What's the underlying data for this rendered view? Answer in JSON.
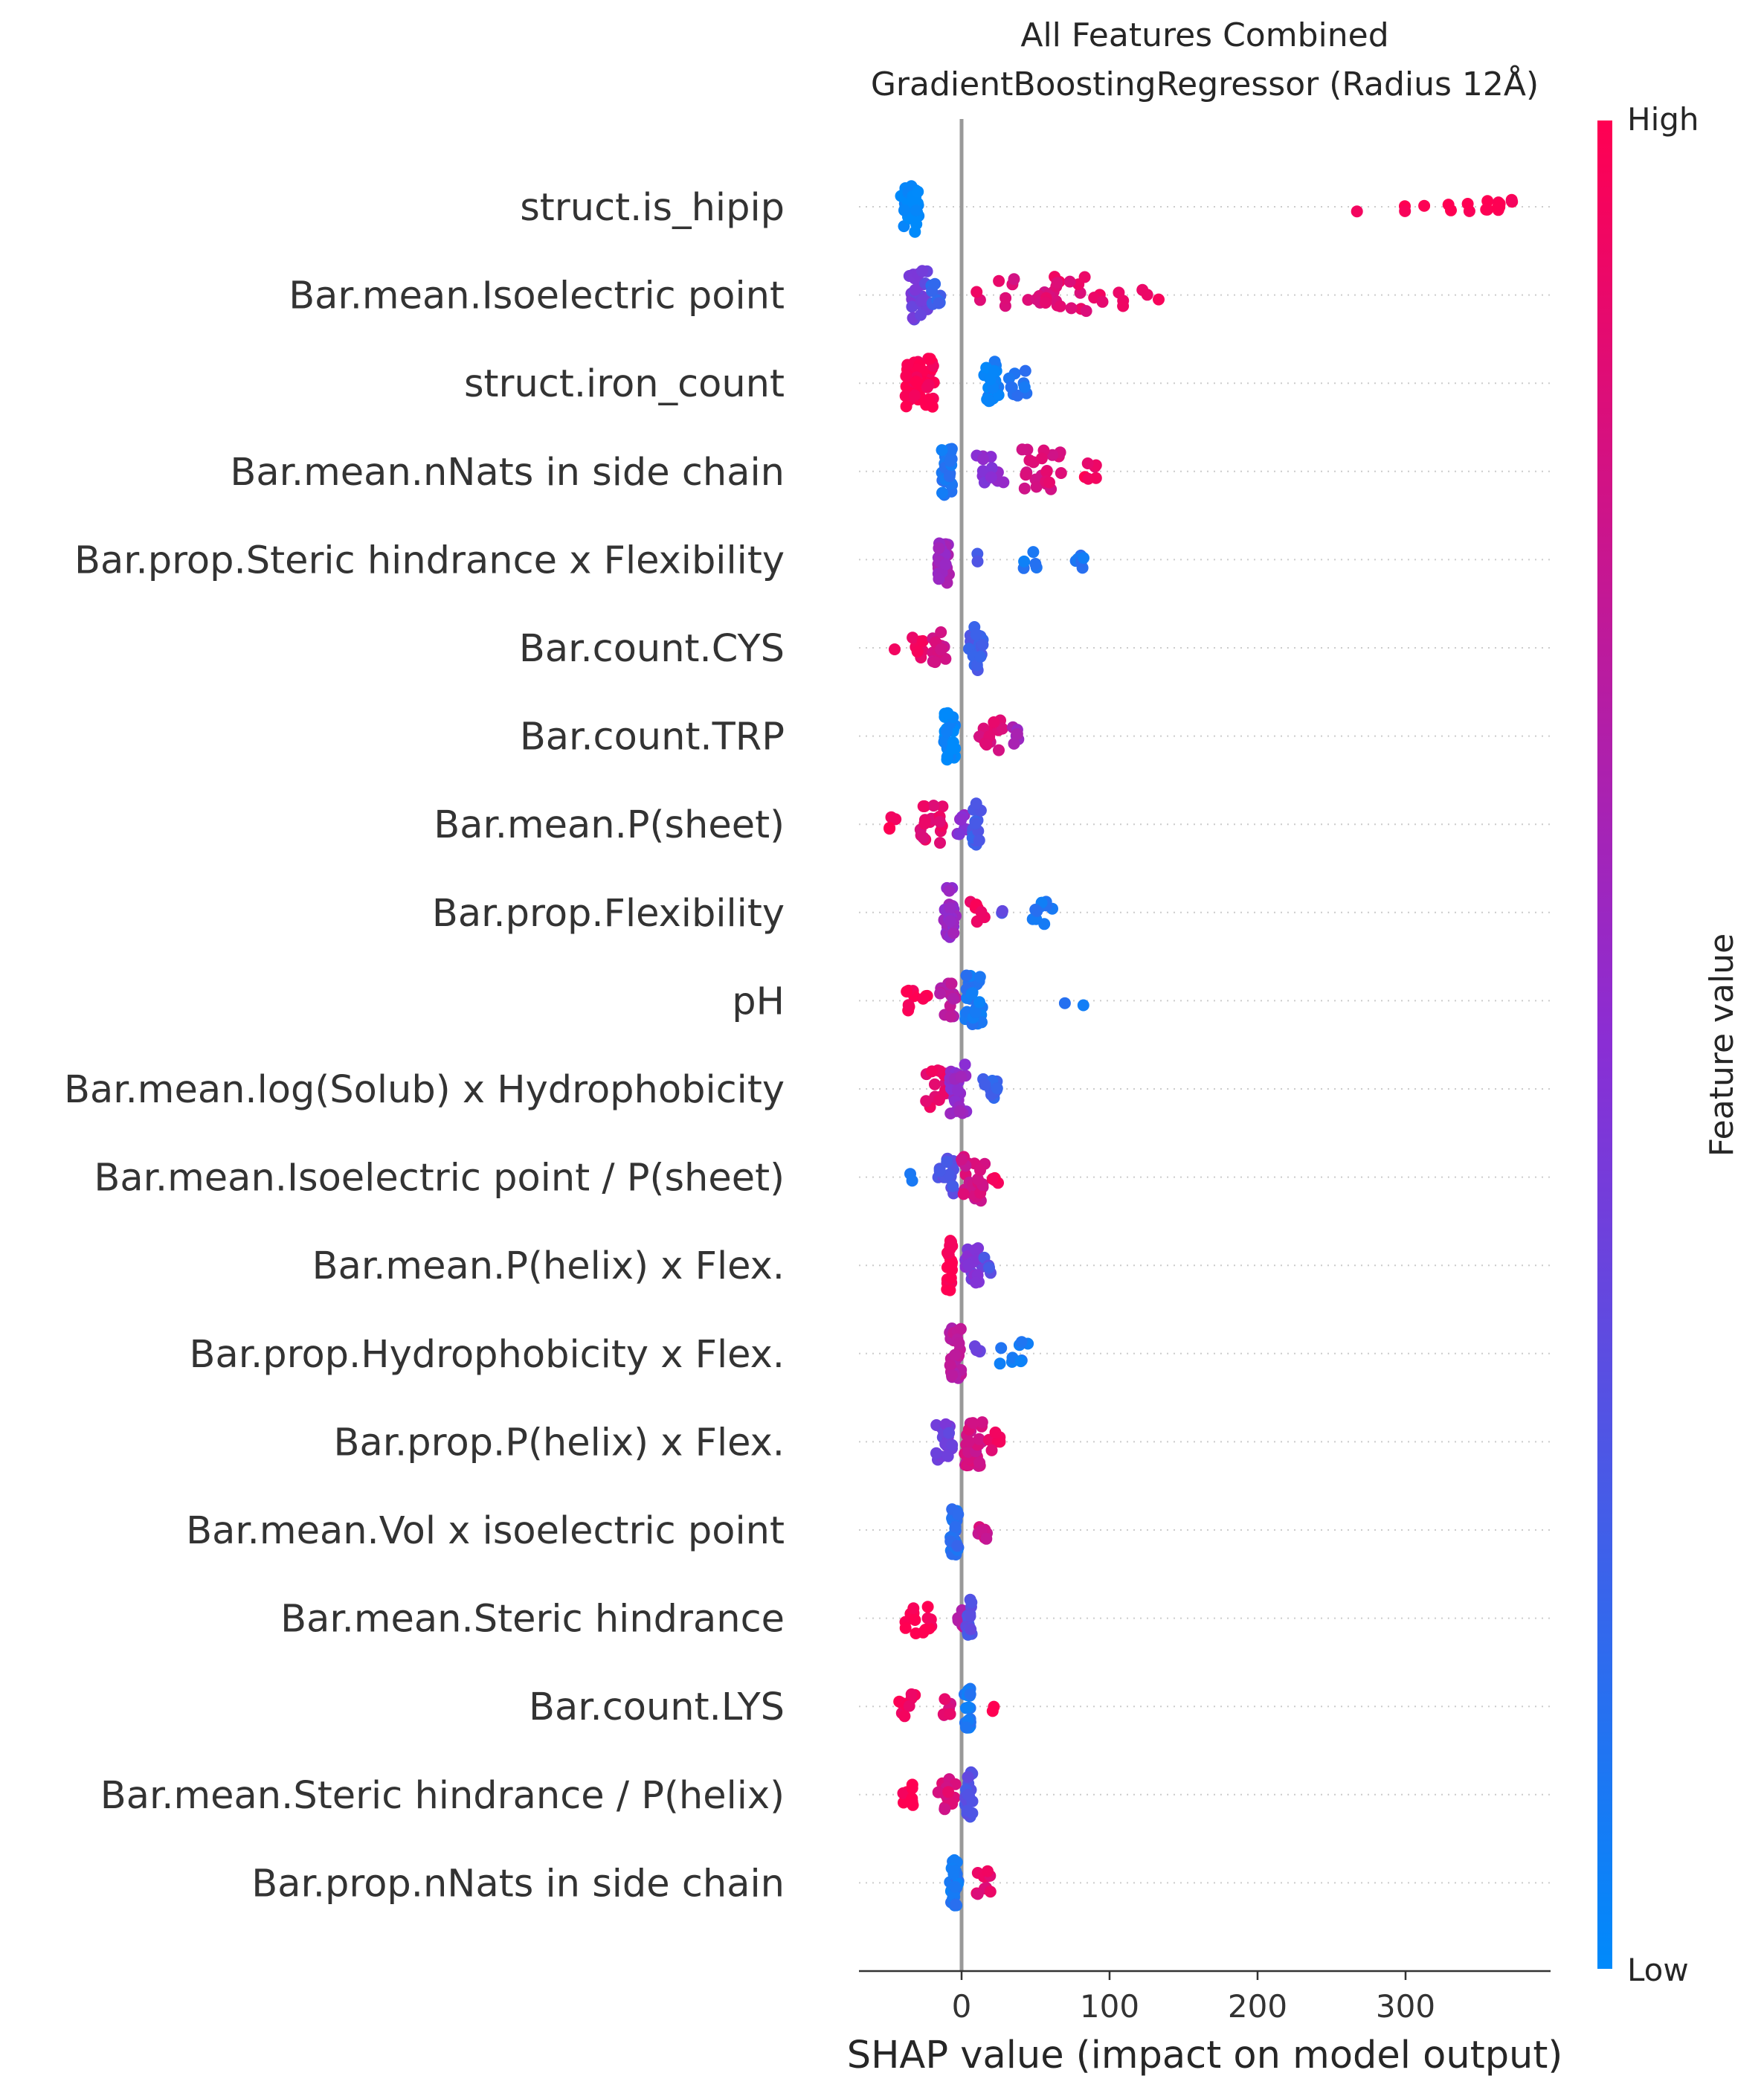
{
  "chart_data": {
    "type": "scatter",
    "subtype": "shap-beeswarm",
    "title": "All Features Combined",
    "subtitle": "GradientBoostingRegressor (Radius 12Å)",
    "xlabel": "SHAP value (impact on model output)",
    "xlim": [
      -70,
      400
    ],
    "xticks": [
      0,
      100,
      200,
      300
    ],
    "colorbar": {
      "label": "Feature value",
      "high_label": "High",
      "low_label": "Low",
      "low_color": "#008afb",
      "mid_color": "#8a2ed4",
      "high_color": "#ff0052"
    },
    "colors": {
      "zero_line": "#999999",
      "row_grid": "#cccccc",
      "axis": "#333333"
    },
    "features": [
      {
        "name": "struct.is_hipip",
        "points": [
          {
            "x": -35,
            "v": 0.0,
            "n": 34,
            "s": 6
          },
          {
            "x": 268,
            "v": 1.0,
            "n": 1,
            "s": 1
          },
          {
            "x": 300,
            "v": 1.0,
            "n": 2,
            "s": 1
          },
          {
            "x": 312,
            "v": 1.0,
            "n": 1,
            "s": 1
          },
          {
            "x": 330,
            "v": 1.0,
            "n": 2,
            "s": 1
          },
          {
            "x": 343,
            "v": 1.0,
            "n": 2,
            "s": 1
          },
          {
            "x": 355,
            "v": 1.0,
            "n": 4,
            "s": 1
          },
          {
            "x": 363,
            "v": 1.0,
            "n": 5,
            "s": 1
          },
          {
            "x": 372,
            "v": 1.0,
            "n": 3,
            "s": 1
          }
        ]
      },
      {
        "name": "Bar.mean.Isoelectric point",
        "points": [
          {
            "x": -30,
            "v": 0.4,
            "n": 26,
            "s": 7
          },
          {
            "x": -18,
            "v": 0.2,
            "n": 10,
            "s": 4
          },
          {
            "x": 12,
            "v": 0.9,
            "n": 2,
            "s": 2
          },
          {
            "x": 45,
            "v": 0.85,
            "n": 16,
            "s": 20
          },
          {
            "x": 85,
            "v": 0.9,
            "n": 18,
            "s": 25
          },
          {
            "x": 130,
            "v": 0.95,
            "n": 3,
            "s": 8
          }
        ]
      },
      {
        "name": "struct.iron_count",
        "points": [
          {
            "x": -28,
            "v": 1.0,
            "n": 40,
            "s": 10
          },
          {
            "x": 20,
            "v": 0.05,
            "n": 22,
            "s": 5
          },
          {
            "x": 38,
            "v": 0.1,
            "n": 10,
            "s": 6
          }
        ]
      },
      {
        "name": "Bar.mean.nNats in side chain",
        "points": [
          {
            "x": -10,
            "v": 0.1,
            "n": 26,
            "s": 4
          },
          {
            "x": 20,
            "v": 0.5,
            "n": 14,
            "s": 10
          },
          {
            "x": 55,
            "v": 0.85,
            "n": 22,
            "s": 14
          },
          {
            "x": 88,
            "v": 0.95,
            "n": 6,
            "s": 6
          }
        ]
      },
      {
        "name": "Bar.prop.Steric hindrance x Flexibility",
        "points": [
          {
            "x": -12,
            "v": 0.6,
            "n": 28,
            "s": 4
          },
          {
            "x": 10,
            "v": 0.3,
            "n": 2,
            "s": 1
          },
          {
            "x": 45,
            "v": 0.1,
            "n": 5,
            "s": 6
          },
          {
            "x": 80,
            "v": 0.1,
            "n": 6,
            "s": 4
          }
        ]
      },
      {
        "name": "Bar.count.CYS",
        "points": [
          {
            "x": -45,
            "v": 1.0,
            "n": 1,
            "s": 1
          },
          {
            "x": -30,
            "v": 0.95,
            "n": 8,
            "s": 4
          },
          {
            "x": -15,
            "v": 0.8,
            "n": 14,
            "s": 5
          },
          {
            "x": 10,
            "v": 0.25,
            "n": 24,
            "s": 5
          }
        ]
      },
      {
        "name": "Bar.count.TRP",
        "points": [
          {
            "x": -8,
            "v": 0.0,
            "n": 34,
            "s": 4
          },
          {
            "x": 20,
            "v": 0.85,
            "n": 14,
            "s": 8
          },
          {
            "x": 35,
            "v": 0.6,
            "n": 6,
            "s": 4
          }
        ]
      },
      {
        "name": "Bar.mean.P(sheet)",
        "points": [
          {
            "x": -45,
            "v": 1.0,
            "n": 4,
            "s": 4
          },
          {
            "x": -20,
            "v": 0.9,
            "n": 18,
            "s": 8
          },
          {
            "x": 0,
            "v": 0.5,
            "n": 8,
            "s": 4
          },
          {
            "x": 10,
            "v": 0.25,
            "n": 20,
            "s": 3
          }
        ]
      },
      {
        "name": "Bar.prop.Flexibility",
        "points": [
          {
            "x": -8,
            "v": 0.55,
            "n": 26,
            "s": 4
          },
          {
            "x": 12,
            "v": 0.95,
            "n": 8,
            "s": 6
          },
          {
            "x": 27,
            "v": 0.3,
            "n": 2,
            "s": 1
          },
          {
            "x": 55,
            "v": 0.1,
            "n": 10,
            "s": 7
          }
        ]
      },
      {
        "name": "pH",
        "points": [
          {
            "x": -30,
            "v": 1.0,
            "n": 10,
            "s": 8
          },
          {
            "x": -10,
            "v": 0.7,
            "n": 16,
            "s": 6
          },
          {
            "x": 8,
            "v": 0.1,
            "n": 26,
            "s": 6
          },
          {
            "x": 70,
            "v": 0.1,
            "n": 1,
            "s": 1
          },
          {
            "x": 82,
            "v": 0.1,
            "n": 1,
            "s": 1
          }
        ]
      },
      {
        "name": "Bar.mean.log(Solub) x Hydrophobicity",
        "points": [
          {
            "x": -18,
            "v": 0.9,
            "n": 18,
            "s": 8
          },
          {
            "x": -2,
            "v": 0.55,
            "n": 26,
            "s": 6
          },
          {
            "x": 20,
            "v": 0.2,
            "n": 10,
            "s": 6
          }
        ]
      },
      {
        "name": "Bar.mean.Isoelectric point / P(sheet)",
        "points": [
          {
            "x": -35,
            "v": 0.1,
            "n": 2,
            "s": 2
          },
          {
            "x": -10,
            "v": 0.3,
            "n": 18,
            "s": 6
          },
          {
            "x": 8,
            "v": 0.8,
            "n": 24,
            "s": 8
          },
          {
            "x": 22,
            "v": 1.0,
            "n": 4,
            "s": 4
          }
        ]
      },
      {
        "name": "Bar.mean.P(helix) x Flex.",
        "points": [
          {
            "x": -8,
            "v": 1.0,
            "n": 26,
            "s": 2
          },
          {
            "x": 8,
            "v": 0.45,
            "n": 18,
            "s": 6
          },
          {
            "x": 18,
            "v": 0.3,
            "n": 4,
            "s": 3
          }
        ]
      },
      {
        "name": "Bar.prop.Hydrophobicity x Flex.",
        "points": [
          {
            "x": -4,
            "v": 0.7,
            "n": 32,
            "s": 4
          },
          {
            "x": 10,
            "v": 0.4,
            "n": 4,
            "s": 3
          },
          {
            "x": 35,
            "v": 0.1,
            "n": 10,
            "s": 10
          }
        ]
      },
      {
        "name": "Bar.prop.P(helix) x Flex.",
        "points": [
          {
            "x": -12,
            "v": 0.4,
            "n": 18,
            "s": 6
          },
          {
            "x": 8,
            "v": 0.8,
            "n": 30,
            "s": 6
          },
          {
            "x": 22,
            "v": 0.9,
            "n": 6,
            "s": 4
          }
        ]
      },
      {
        "name": "Bar.mean.Vol x isoelectric point",
        "points": [
          {
            "x": -5,
            "v": 0.15,
            "n": 28,
            "s": 3
          },
          {
            "x": 12,
            "v": 0.8,
            "n": 8,
            "s": 6
          }
        ]
      },
      {
        "name": "Bar.mean.Steric hindrance",
        "points": [
          {
            "x": -30,
            "v": 1.0,
            "n": 14,
            "s": 10
          },
          {
            "x": 0,
            "v": 0.7,
            "n": 6,
            "s": 3
          },
          {
            "x": 5,
            "v": 0.3,
            "n": 18,
            "s": 2
          }
        ]
      },
      {
        "name": "Bar.count.LYS",
        "points": [
          {
            "x": -35,
            "v": 0.95,
            "n": 10,
            "s": 8
          },
          {
            "x": -10,
            "v": 0.85,
            "n": 6,
            "s": 3
          },
          {
            "x": 4,
            "v": 0.1,
            "n": 22,
            "s": 2
          },
          {
            "x": 22,
            "v": 1.0,
            "n": 2,
            "s": 2
          }
        ]
      },
      {
        "name": "Bar.mean.Steric hindrance / P(helix)",
        "points": [
          {
            "x": -35,
            "v": 1.0,
            "n": 8,
            "s": 6
          },
          {
            "x": -10,
            "v": 0.85,
            "n": 14,
            "s": 6
          },
          {
            "x": 5,
            "v": 0.3,
            "n": 22,
            "s": 3
          }
        ]
      },
      {
        "name": "Bar.prop.nNats in side chain",
        "points": [
          {
            "x": -5,
            "v": 0.1,
            "n": 34,
            "s": 3
          },
          {
            "x": 15,
            "v": 0.9,
            "n": 10,
            "s": 5
          }
        ]
      }
    ]
  }
}
